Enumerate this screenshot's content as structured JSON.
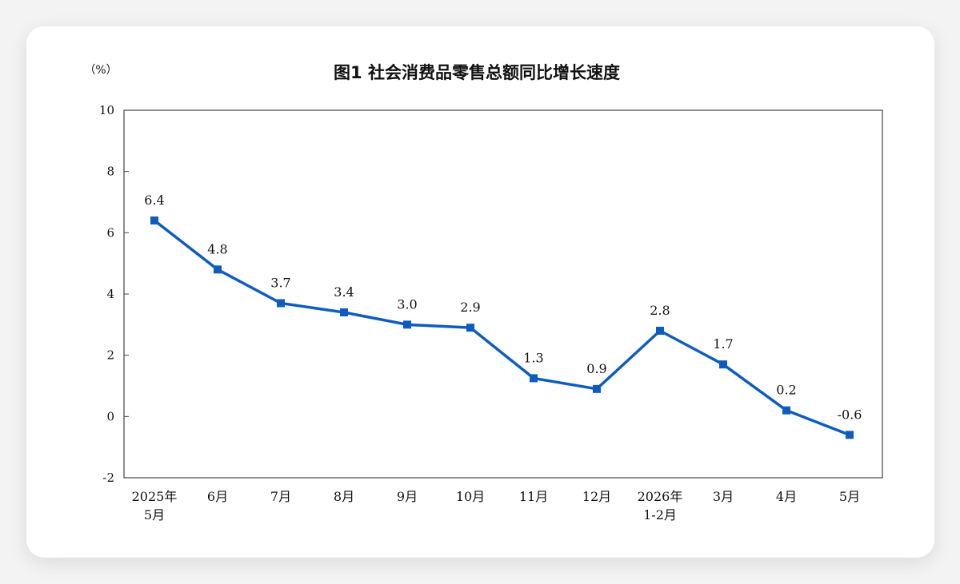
{
  "chart_data": {
    "type": "line",
    "title": "图1  社会消费品零售总额同比增长速度",
    "ylabel": "（%）",
    "xlabel": "",
    "ylim": [
      -2,
      10
    ],
    "yticks": [
      "-2",
      "0",
      "2",
      "4",
      "6",
      "8",
      "10"
    ],
    "grid": false,
    "categories": [
      [
        "2025年",
        "5月"
      ],
      [
        "6月"
      ],
      [
        "7月"
      ],
      [
        "8月"
      ],
      [
        "9月"
      ],
      [
        "10月"
      ],
      [
        "11月"
      ],
      [
        "12月"
      ],
      [
        "2026年",
        "1-2月"
      ],
      [
        "3月"
      ],
      [
        "4月"
      ],
      [
        "5月"
      ]
    ],
    "values": [
      6.4,
      4.8,
      3.7,
      3.4,
      3.0,
      2.9,
      1.25,
      0.9,
      2.8,
      1.7,
      0.2,
      -0.6
    ],
    "data_labels": [
      "6.4",
      "4.8",
      "3.7",
      "3.4",
      "3.0",
      "2.9",
      "1.3",
      "0.9",
      "2.8",
      "1.7",
      "0.2",
      "-0.6"
    ],
    "series_color": "#0e5cc0"
  }
}
